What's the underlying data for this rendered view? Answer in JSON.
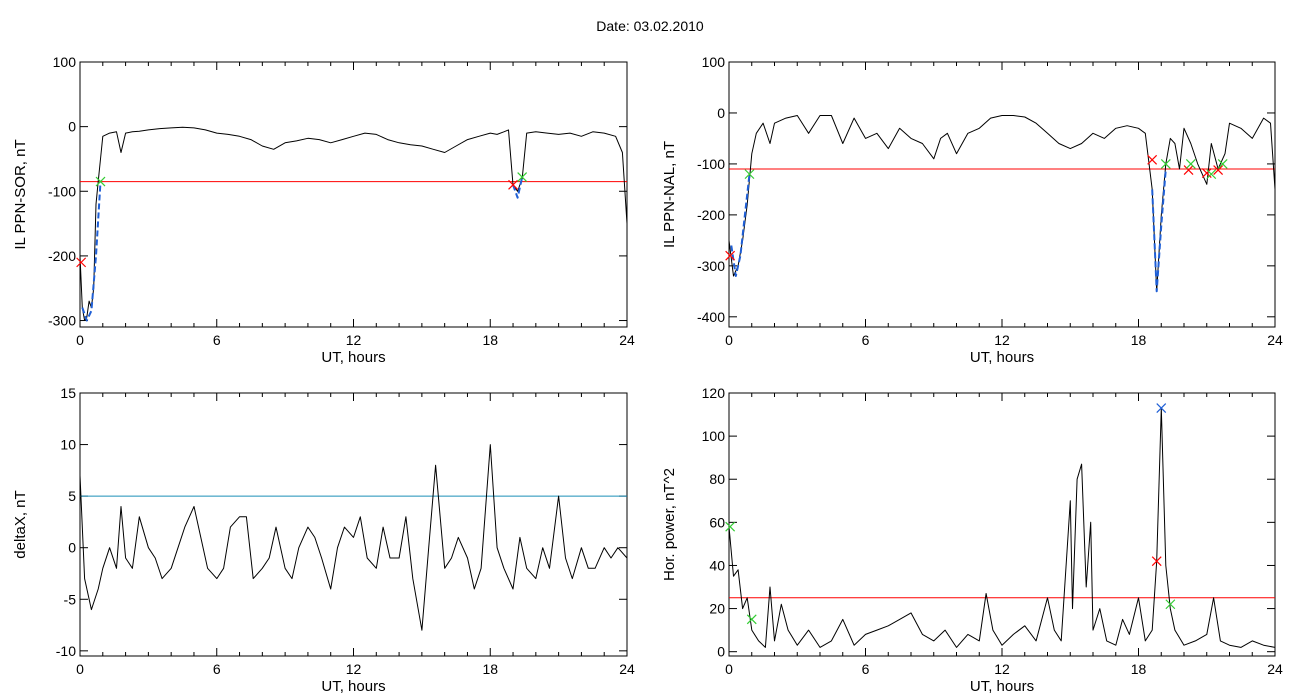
{
  "page_title": "Date:  03.02.2010",
  "chart_data": [
    {
      "type": "line",
      "xlabel": "UT, hours",
      "ylabel": "IL PPN-SOR, nT",
      "xlim": [
        0,
        24
      ],
      "ylim": [
        -310,
        100
      ],
      "xticks": [
        0,
        6,
        12,
        18,
        24
      ],
      "yticks": [
        100,
        0,
        -100,
        -200,
        -300
      ],
      "threshold": -85,
      "threshold_color": "#ff0000",
      "series": [
        {
          "color": "#000000",
          "x": [
            0,
            0.1,
            0.2,
            0.3,
            0.4,
            0.5,
            0.6,
            0.7,
            0.8,
            0.9,
            1.0,
            1.3,
            1.6,
            1.8,
            2.0,
            2.3,
            2.6,
            3.0,
            3.5,
            4.0,
            4.5,
            5.0,
            5.5,
            6.0,
            6.5,
            7.0,
            7.5,
            8.0,
            8.5,
            9.0,
            9.5,
            10.0,
            10.5,
            11.0,
            11.5,
            12.0,
            12.5,
            13.0,
            13.5,
            14.0,
            14.5,
            15.0,
            15.5,
            16.0,
            16.5,
            17.0,
            17.5,
            18.0,
            18.3,
            18.6,
            18.8,
            19.0,
            19.2,
            19.4,
            19.6,
            20.0,
            20.5,
            21.0,
            21.5,
            22.0,
            22.5,
            23.0,
            23.5,
            23.8,
            24.0
          ],
          "y": [
            -200,
            -280,
            -300,
            -295,
            -270,
            -280,
            -250,
            -120,
            -85,
            -50,
            -15,
            -10,
            -8,
            -40,
            -10,
            -8,
            -7,
            -5,
            -3,
            -2,
            -1,
            -2,
            -5,
            -10,
            -12,
            -15,
            -20,
            -30,
            -35,
            -25,
            -22,
            -18,
            -20,
            -25,
            -20,
            -15,
            -10,
            -12,
            -20,
            -25,
            -28,
            -30,
            -35,
            -40,
            -30,
            -20,
            -15,
            -10,
            -12,
            -8,
            -5,
            -90,
            -100,
            -80,
            -10,
            -8,
            -10,
            -12,
            -10,
            -15,
            -8,
            -10,
            -15,
            -40,
            -150
          ]
        },
        {
          "color": "#1f5fd6",
          "dashed": true,
          "x": [
            0.1,
            0.3,
            0.5,
            0.7,
            0.9
          ],
          "y": [
            -280,
            -300,
            -285,
            -200,
            -85
          ]
        },
        {
          "color": "#1f5fd6",
          "dashed": true,
          "x": [
            19.0,
            19.2,
            19.4
          ],
          "y": [
            -90,
            -110,
            -78
          ]
        }
      ],
      "markers": [
        {
          "x": 0.05,
          "y": -210,
          "color": "#ff0000"
        },
        {
          "x": 0.9,
          "y": -85,
          "color": "#33cc33"
        },
        {
          "x": 19.0,
          "y": -90,
          "color": "#ff0000"
        },
        {
          "x": 19.4,
          "y": -78,
          "color": "#33cc33"
        }
      ]
    },
    {
      "type": "line",
      "xlabel": "UT, hours",
      "ylabel": "IL PPN-NAL, nT",
      "xlim": [
        0,
        24
      ],
      "ylim": [
        -420,
        100
      ],
      "xticks": [
        0,
        6,
        12,
        18,
        24
      ],
      "yticks": [
        100,
        0,
        -100,
        -200,
        -300,
        -400
      ],
      "threshold": -110,
      "threshold_color": "#ff0000",
      "series": [
        {
          "color": "#000000",
          "x": [
            0,
            0.2,
            0.4,
            0.6,
            0.8,
            1.0,
            1.2,
            1.5,
            1.8,
            2.0,
            2.5,
            3.0,
            3.5,
            4.0,
            4.5,
            5.0,
            5.5,
            6.0,
            6.5,
            7.0,
            7.5,
            8.0,
            8.5,
            9.0,
            9.3,
            9.6,
            10.0,
            10.5,
            11.0,
            11.5,
            12.0,
            12.5,
            13.0,
            13.5,
            14.0,
            14.5,
            15.0,
            15.5,
            16.0,
            16.5,
            17.0,
            17.5,
            18.0,
            18.3,
            18.6,
            18.8,
            19.0,
            19.2,
            19.4,
            19.6,
            19.8,
            20.0,
            20.3,
            20.6,
            21.0,
            21.2,
            21.5,
            21.8,
            22.0,
            22.5,
            23.0,
            23.5,
            23.8,
            24.0
          ],
          "y": [
            -250,
            -320,
            -300,
            -250,
            -180,
            -80,
            -40,
            -20,
            -60,
            -20,
            -10,
            -5,
            -40,
            -5,
            -5,
            -60,
            -10,
            -50,
            -40,
            -70,
            -30,
            -50,
            -60,
            -90,
            -50,
            -40,
            -80,
            -40,
            -30,
            -10,
            -5,
            -5,
            -8,
            -20,
            -40,
            -60,
            -70,
            -60,
            -40,
            -50,
            -30,
            -25,
            -30,
            -40,
            -150,
            -350,
            -200,
            -100,
            -50,
            -60,
            -110,
            -30,
            -60,
            -100,
            -140,
            -60,
            -110,
            -80,
            -20,
            -30,
            -50,
            -10,
            -20,
            -150
          ]
        },
        {
          "color": "#1f5fd6",
          "dashed": true,
          "x": [
            0.1,
            0.3,
            0.5,
            0.7,
            0.9
          ],
          "y": [
            -260,
            -320,
            -280,
            -200,
            -120
          ]
        },
        {
          "color": "#1f5fd6",
          "dashed": true,
          "x": [
            18.6,
            18.8,
            19.0,
            19.2
          ],
          "y": [
            -150,
            -350,
            -220,
            -110
          ]
        }
      ],
      "markers": [
        {
          "x": 0.05,
          "y": -280,
          "color": "#ff0000"
        },
        {
          "x": 0.9,
          "y": -120,
          "color": "#33cc33"
        },
        {
          "x": 18.6,
          "y": -92,
          "color": "#ff0000"
        },
        {
          "x": 19.2,
          "y": -100,
          "color": "#33cc33"
        },
        {
          "x": 20.2,
          "y": -112,
          "color": "#ff0000"
        },
        {
          "x": 20.3,
          "y": -100,
          "color": "#33cc33"
        },
        {
          "x": 21.0,
          "y": -118,
          "color": "#ff0000"
        },
        {
          "x": 21.2,
          "y": -120,
          "color": "#33cc33"
        },
        {
          "x": 21.5,
          "y": -112,
          "color": "#ff0000"
        },
        {
          "x": 21.7,
          "y": -100,
          "color": "#33cc33"
        }
      ]
    },
    {
      "type": "line",
      "xlabel": "UT, hours",
      "ylabel": "deltaX, nT",
      "xlim": [
        0,
        24
      ],
      "ylim": [
        -10.5,
        15
      ],
      "xticks": [
        0,
        6,
        12,
        18,
        24
      ],
      "yticks": [
        15,
        10,
        5,
        0,
        -5,
        -10
      ],
      "threshold": 5,
      "threshold_color": "#1a8fb8",
      "series": [
        {
          "color": "#000000",
          "x": [
            0,
            0.2,
            0.5,
            0.8,
            1.0,
            1.3,
            1.6,
            1.8,
            2.0,
            2.3,
            2.6,
            3.0,
            3.3,
            3.6,
            4.0,
            4.3,
            4.6,
            5.0,
            5.3,
            5.6,
            6.0,
            6.3,
            6.6,
            7.0,
            7.3,
            7.6,
            8.0,
            8.3,
            8.6,
            9.0,
            9.3,
            9.6,
            10.0,
            10.3,
            10.6,
            11.0,
            11.3,
            11.6,
            12.0,
            12.3,
            12.6,
            13.0,
            13.3,
            13.6,
            14.0,
            14.3,
            14.6,
            15.0,
            15.3,
            15.6,
            16.0,
            16.3,
            16.6,
            17.0,
            17.3,
            17.6,
            18.0,
            18.3,
            18.6,
            19.0,
            19.3,
            19.6,
            20.0,
            20.3,
            20.6,
            21.0,
            21.3,
            21.6,
            22.0,
            22.3,
            22.6,
            23.0,
            23.3,
            23.6,
            24.0
          ],
          "y": [
            7,
            -3,
            -6,
            -4,
            -2,
            0,
            -2,
            4,
            -1,
            -2,
            3,
            0,
            -1,
            -3,
            -2,
            0,
            2,
            4,
            1,
            -2,
            -3,
            -2,
            2,
            3,
            3,
            -3,
            -2,
            -1,
            2,
            -2,
            -3,
            0,
            2,
            1,
            -1,
            -4,
            0,
            2,
            1,
            3,
            -1,
            -2,
            2,
            -1,
            -1,
            3,
            -3,
            -8,
            0,
            8,
            -2,
            -1,
            1,
            -1,
            -4,
            -2,
            10,
            0,
            -2,
            -4,
            1,
            -2,
            -3,
            0,
            -2,
            5,
            -1,
            -3,
            0,
            -2,
            -2,
            0,
            -1,
            0,
            -1
          ]
        }
      ],
      "markers": []
    },
    {
      "type": "line",
      "xlabel": "UT, hours",
      "ylabel": "Hor. power, nT^2",
      "xlim": [
        0,
        24
      ],
      "ylim": [
        -2,
        120
      ],
      "xticks": [
        0,
        6,
        12,
        18,
        24
      ],
      "yticks": [
        120,
        100,
        80,
        60,
        40,
        20,
        0
      ],
      "threshold": 25,
      "threshold_color": "#ff0000",
      "series": [
        {
          "color": "#000000",
          "x": [
            0,
            0.2,
            0.4,
            0.6,
            0.8,
            1.0,
            1.3,
            1.6,
            1.8,
            2.0,
            2.3,
            2.6,
            3.0,
            3.5,
            4.0,
            4.5,
            5.0,
            5.5,
            6.0,
            6.5,
            7.0,
            7.5,
            8.0,
            8.5,
            9.0,
            9.5,
            10.0,
            10.5,
            11.0,
            11.3,
            11.6,
            12.0,
            12.5,
            13.0,
            13.5,
            14.0,
            14.3,
            14.6,
            15.0,
            15.1,
            15.3,
            15.5,
            15.7,
            15.9,
            16.0,
            16.3,
            16.6,
            17.0,
            17.3,
            17.6,
            18.0,
            18.3,
            18.6,
            18.8,
            19.0,
            19.2,
            19.4,
            19.6,
            20.0,
            20.5,
            21.0,
            21.3,
            21.6,
            22.0,
            22.5,
            23.0,
            23.5,
            24.0
          ],
          "y": [
            58,
            35,
            38,
            20,
            25,
            10,
            5,
            2,
            30,
            5,
            22,
            10,
            3,
            10,
            2,
            5,
            15,
            3,
            8,
            10,
            12,
            15,
            18,
            8,
            5,
            10,
            2,
            8,
            5,
            27,
            10,
            3,
            8,
            12,
            5,
            25,
            10,
            5,
            70,
            20,
            80,
            87,
            30,
            60,
            10,
            20,
            5,
            3,
            15,
            8,
            25,
            5,
            10,
            42,
            113,
            40,
            20,
            10,
            3,
            5,
            8,
            25,
            5,
            3,
            2,
            5,
            3,
            2
          ]
        }
      ],
      "markers": [
        {
          "x": 0.05,
          "y": 58,
          "color": "#33cc33"
        },
        {
          "x": 1.0,
          "y": 15,
          "color": "#33cc33"
        },
        {
          "x": 18.8,
          "y": 42,
          "color": "#ff0000"
        },
        {
          "x": 19.0,
          "y": 113,
          "color": "#1f5fd6"
        },
        {
          "x": 19.4,
          "y": 22,
          "color": "#33cc33"
        }
      ]
    }
  ]
}
